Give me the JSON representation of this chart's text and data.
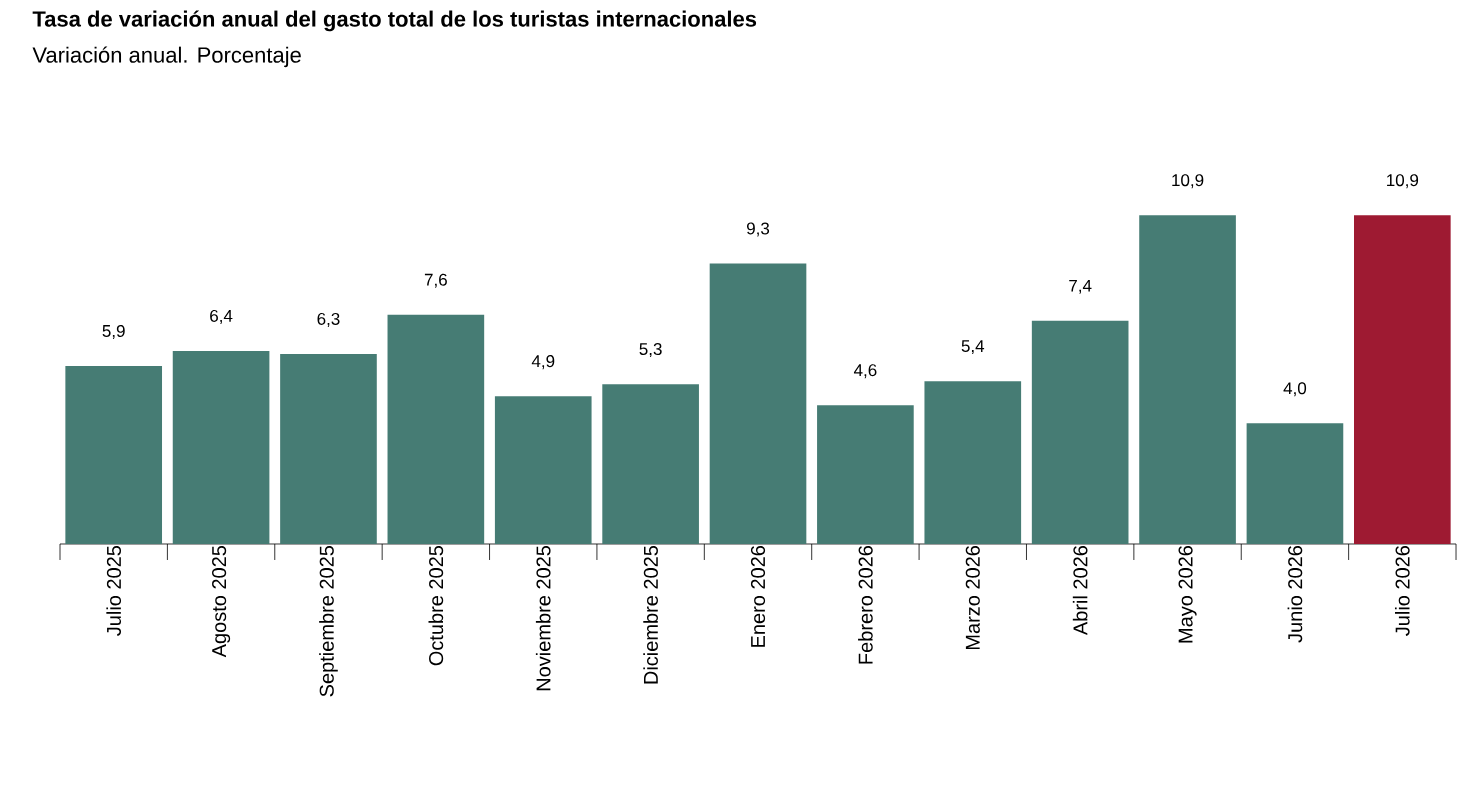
{
  "chart_data": {
    "type": "bar",
    "title": "Tasa de variación anual del gasto total de los turistas internacionales",
    "subtitle": "Variación anual. Porcentaje",
    "categories": [
      "Julio 2025",
      "Agosto 2025",
      "Septiembre 2025",
      "Octubre 2025",
      "Noviembre 2025",
      "Diciembre 2025",
      "Enero 2026",
      "Febrero 2026",
      "Marzo 2026",
      "Abril 2026",
      "Mayo 2026",
      "Junio 2026",
      "Julio 2026"
    ],
    "values": [
      5.9,
      6.4,
      6.3,
      7.6,
      4.9,
      5.3,
      9.3,
      4.6,
      5.4,
      7.4,
      10.9,
      4.0,
      10.9
    ],
    "value_labels": [
      "5,9",
      "6,4",
      "6,3",
      "7,6",
      "4,9",
      "5,3",
      "9,3",
      "4,6",
      "5,4",
      "7,4",
      "10,9",
      "4,0",
      "10,9"
    ],
    "colors": [
      "#467c74",
      "#467c74",
      "#467c74",
      "#467c74",
      "#467c74",
      "#467c74",
      "#467c74",
      "#467c74",
      "#467c74",
      "#467c74",
      "#467c74",
      "#467c74",
      "#9e1a32"
    ]
  }
}
